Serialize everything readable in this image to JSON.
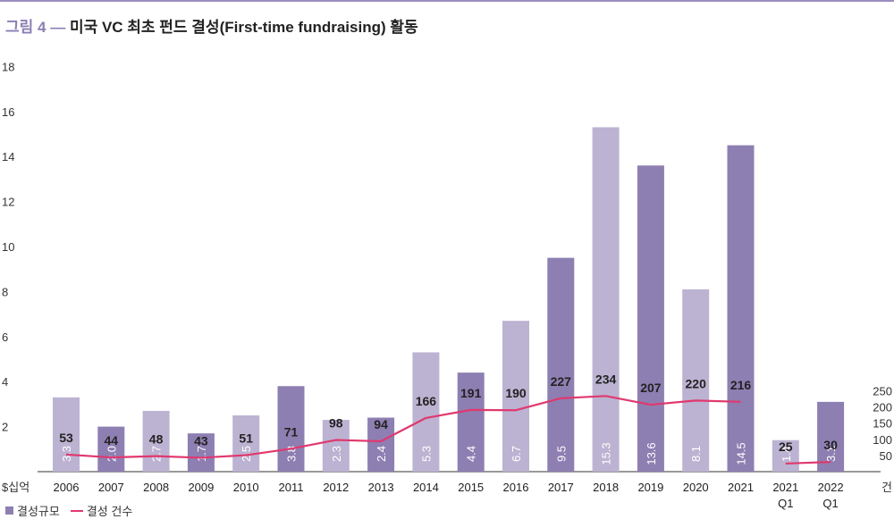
{
  "title": {
    "figure": "그림 4",
    "dash": "—",
    "text": "미국 VC 최초 펀드 결성(First-time fundraising) 활동"
  },
  "legend": {
    "bar_label": "결성규모",
    "line_label": "결성 건수"
  },
  "colors": {
    "bar_light": "#bcb3d2",
    "bar_dark": "#8e7fb2",
    "line": "#e0386e",
    "title_accent": "#8b7fb4",
    "axis": "#333333"
  },
  "chart_data": {
    "type": "bar",
    "categories": [
      "2006",
      "2007",
      "2008",
      "2009",
      "2010",
      "2011",
      "2012",
      "2013",
      "2014",
      "2015",
      "2016",
      "2017",
      "2018",
      "2019",
      "2020",
      "2021",
      "2021\nQ1",
      "2022\nQ1"
    ],
    "series": [
      {
        "name": "결성규모",
        "type": "bar",
        "axis": "left",
        "values": [
          3.3,
          2.0,
          2.7,
          1.7,
          2.5,
          3.8,
          2.3,
          2.4,
          5.3,
          4.4,
          6.7,
          9.5,
          15.3,
          13.6,
          8.1,
          14.5,
          1.4,
          3.1
        ],
        "shade": [
          "light",
          "dark",
          "light",
          "dark",
          "light",
          "dark",
          "light",
          "dark",
          "light",
          "dark",
          "light",
          "dark",
          "light",
          "dark",
          "light",
          "dark",
          "light",
          "dark"
        ]
      },
      {
        "name": "결성 건수",
        "type": "line",
        "axis": "right",
        "values": [
          53,
          44,
          48,
          43,
          51,
          71,
          98,
          94,
          166,
          191,
          190,
          227,
          234,
          207,
          220,
          216,
          25,
          30
        ],
        "segments": [
          [
            0,
            15
          ],
          [
            16,
            17
          ]
        ]
      }
    ],
    "y_left": {
      "unit": "$십억",
      "ticks": [
        2,
        4,
        6,
        8,
        10,
        12,
        14,
        16,
        18
      ],
      "range": [
        0,
        18
      ]
    },
    "y_right": {
      "unit": "건",
      "ticks": [
        50,
        100,
        150,
        200,
        250
      ],
      "range": [
        0,
        250
      ]
    },
    "grid": false,
    "legend_position": "bottom-left"
  }
}
